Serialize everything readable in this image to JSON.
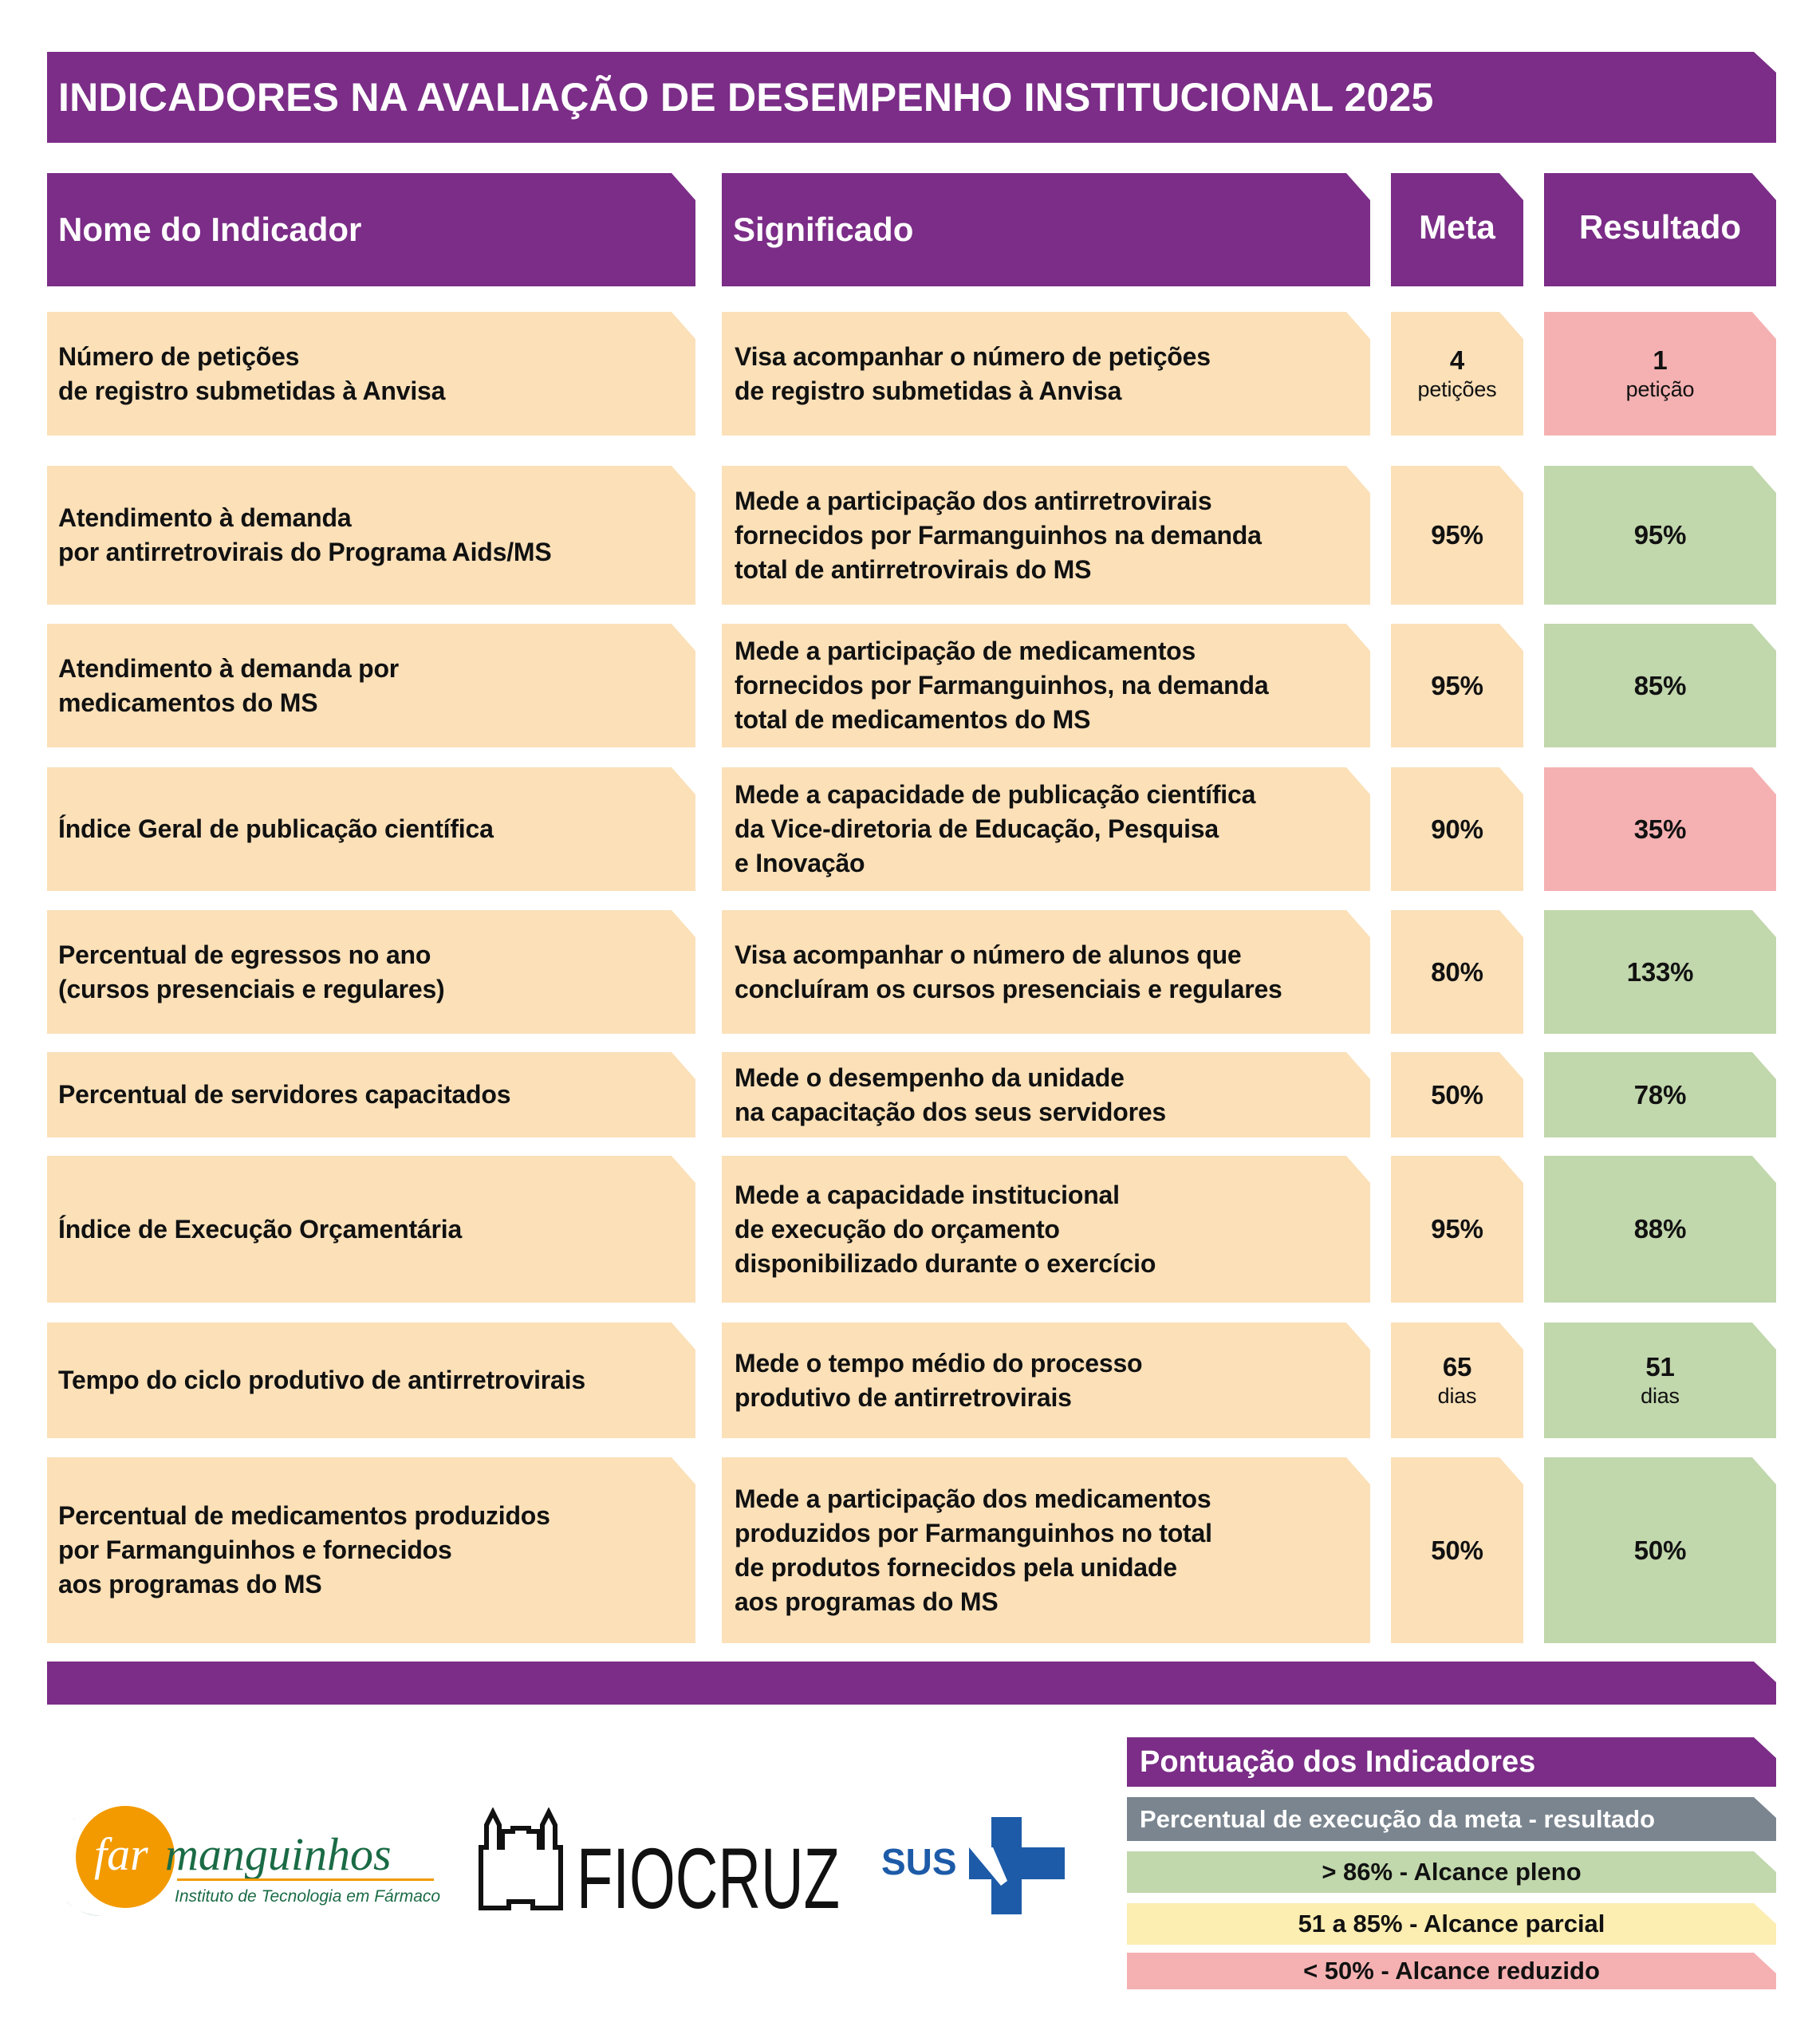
{
  "title": "INDICADORES NA AVALIAÇÃO DE DESEMPENHO INSTITUCIONAL 2025",
  "headers": {
    "name": "Nome do Indicador",
    "meaning": "Significado",
    "meta": "Meta",
    "result": "Resultado"
  },
  "rows": [
    {
      "name": "Número de petições\nde registro submetidas à Anvisa",
      "meaning": "Visa acompanhar o número de petições\nde registro submetidas à Anvisa",
      "meta": "4",
      "meta_unit": "petições",
      "result": "1",
      "result_unit": "petição",
      "status": "reduzido"
    },
    {
      "name": "Atendimento à demanda\npor antirretrovirais do Programa Aids/MS",
      "meaning": "Mede a participação dos antirretrovirais\nfornecidos por Farmanguinhos na demanda\ntotal de antirretrovirais do MS",
      "meta": "95%",
      "result": "95%",
      "status": "pleno"
    },
    {
      "name": "Atendimento à demanda por\nmedicamentos do MS",
      "meaning": "Mede a participação de medicamentos\nfornecidos por Farmanguinhos, na demanda\ntotal de medicamentos do MS",
      "meta": "95%",
      "result": "85%",
      "status": "pleno"
    },
    {
      "name": "Índice Geral de publicação científica",
      "meaning": "Mede a capacidade de publicação científica\nda Vice-diretoria de Educação, Pesquisa\ne Inovação",
      "meta": "90%",
      "result": "35%",
      "status": "reduzido"
    },
    {
      "name": "Percentual de egressos no ano\n(cursos presenciais e regulares)",
      "meaning": "Visa acompanhar o número de alunos que\nconcluíram os cursos presenciais e regulares",
      "meta": "80%",
      "result": "133%",
      "status": "pleno"
    },
    {
      "name": "Percentual de servidores capacitados",
      "meaning": "Mede o desempenho da unidade\nna capacitação dos seus servidores",
      "meta": "50%",
      "result": "78%",
      "status": "pleno"
    },
    {
      "name": "Índice de Execução Orçamentária",
      "meaning": "Mede a capacidade institucional\nde execução do orçamento\ndisponibilizado durante o exercício",
      "meta": "95%",
      "result": "88%",
      "status": "pleno"
    },
    {
      "name": "Tempo do ciclo produtivo de antirretrovirais",
      "meaning": "Mede o tempo médio do processo\nprodutivo de antirretrovirais",
      "meta": "65",
      "meta_unit": "dias",
      "result": "51",
      "result_unit": "dias",
      "status": "pleno"
    },
    {
      "name": "Percentual de medicamentos produzidos\npor Farmanguinhos e fornecidos\naos programas do MS",
      "meaning": "Mede a participação dos medicamentos\nproduzidos por Farmanguinhos no total\nde produtos fornecidos pela unidade\naos programas do MS",
      "meta": "50%",
      "result": "50%",
      "status": "pleno"
    }
  ],
  "legend": {
    "title": "Pontuação dos Indicadores",
    "subtitle": "Percentual de execução da meta - resultado",
    "pleno": "> 86% - Alcance pleno",
    "parcial": "51 a 85% - Alcance parcial",
    "reduzido": "< 50% - Alcance reduzido"
  },
  "logos": {
    "farmanguinhos": "farmanguinhos",
    "farmanguinhos_sub": "Instituto de Tecnologia em Fármacos",
    "fiocruz": "FIOCRUZ",
    "sus": "SUS"
  },
  "colors": {
    "purple": "#7b2d87",
    "peach": "#fbe0b8",
    "green": "#c1d7ac",
    "pink": "#f5b1b2",
    "gray": "#7a858f",
    "yellow": "#fcedb1"
  }
}
